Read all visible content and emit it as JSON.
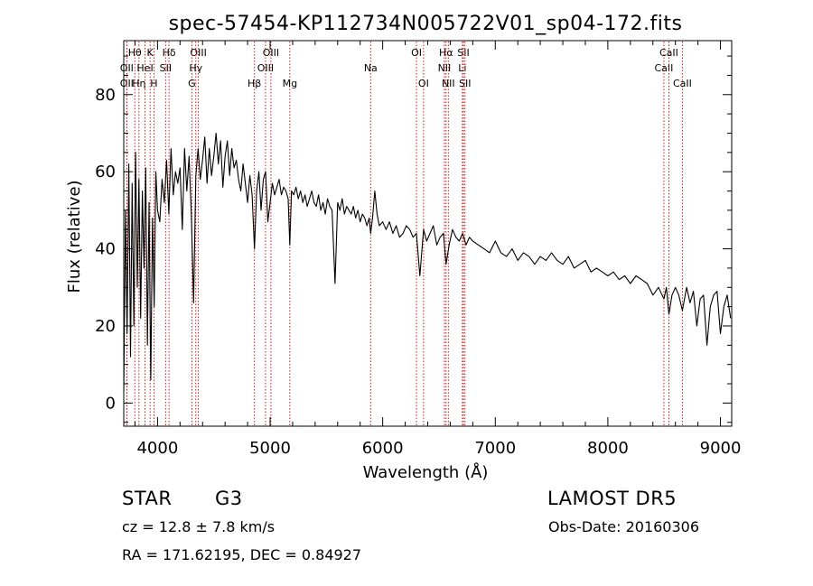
{
  "chart_data": {
    "type": "line",
    "title": "spec-57454-KP112734N005722V01_sp04-172.fits",
    "xlabel": "Wavelength (Å)",
    "ylabel": "Flux (relative)",
    "xlim": [
      3700,
      9100
    ],
    "ylim": [
      -6,
      94
    ],
    "xticks": [
      4000,
      5000,
      6000,
      7000,
      8000,
      9000
    ],
    "yticks": [
      0,
      20,
      40,
      60,
      80
    ],
    "grid": false,
    "line_color": "#000000",
    "marker_color": "#cc0000",
    "series": [
      {
        "x": [
          3700,
          3715,
          3730,
          3745,
          3760,
          3775,
          3790,
          3805,
          3820,
          3835,
          3850,
          3865,
          3880,
          3895,
          3910,
          3925,
          3940,
          3955,
          3970,
          3985,
          4000,
          4020,
          4040,
          4060,
          4080,
          4100,
          4120,
          4140,
          4160,
          4180,
          4200,
          4220,
          4240,
          4260,
          4280,
          4300,
          4320,
          4340,
          4360,
          4380,
          4400,
          4420,
          4440,
          4460,
          4480,
          4500,
          4520,
          4540,
          4560,
          4580,
          4600,
          4620,
          4640,
          4660,
          4680,
          4700,
          4720,
          4740,
          4760,
          4780,
          4800,
          4820,
          4840,
          4861,
          4880,
          4900,
          4920,
          4940,
          4960,
          4980,
          5000,
          5020,
          5040,
          5060,
          5080,
          5100,
          5120,
          5140,
          5160,
          5175,
          5190,
          5210,
          5230,
          5250,
          5270,
          5290,
          5310,
          5330,
          5350,
          5370,
          5390,
          5410,
          5430,
          5450,
          5470,
          5490,
          5510,
          5530,
          5550,
          5577,
          5600,
          5620,
          5640,
          5660,
          5680,
          5700,
          5720,
          5740,
          5760,
          5780,
          5800,
          5820,
          5840,
          5860,
          5880,
          5893,
          5910,
          5930,
          5950,
          5970,
          6000,
          6030,
          6060,
          6090,
          6120,
          6150,
          6180,
          6210,
          6240,
          6270,
          6300,
          6330,
          6363,
          6390,
          6420,
          6450,
          6480,
          6510,
          6540,
          6563,
          6590,
          6620,
          6650,
          6680,
          6710,
          6740,
          6770,
          6800,
          6850,
          6900,
          6950,
          7000,
          7050,
          7100,
          7150,
          7200,
          7250,
          7300,
          7350,
          7400,
          7450,
          7500,
          7550,
          7600,
          7650,
          7700,
          7750,
          7800,
          7850,
          7900,
          7950,
          8000,
          8050,
          8100,
          8150,
          8200,
          8250,
          8300,
          8350,
          8400,
          8450,
          8498,
          8520,
          8542,
          8570,
          8600,
          8630,
          8662,
          8700,
          8730,
          8760,
          8790,
          8820,
          8850,
          8880,
          8910,
          8940,
          8970,
          9000,
          9030,
          9060,
          9090
        ],
        "y": [
          3,
          50,
          18,
          62,
          12,
          57,
          20,
          65,
          30,
          58,
          22,
          55,
          35,
          61,
          15,
          52,
          6,
          48,
          25,
          60,
          50,
          47,
          58,
          52,
          63,
          49,
          66,
          54,
          60,
          57,
          61,
          45,
          66,
          55,
          64,
          49,
          26,
          59,
          66,
          58,
          63,
          69,
          57,
          66,
          59,
          64,
          70,
          62,
          68,
          56,
          64,
          68,
          59,
          66,
          61,
          63,
          58,
          55,
          62,
          57,
          52,
          59,
          54,
          40,
          55,
          60,
          50,
          58,
          60,
          47,
          52,
          57,
          54,
          56,
          58,
          54,
          56,
          55,
          53,
          41,
          55,
          54,
          56,
          53,
          55,
          52,
          54,
          51,
          53,
          55,
          52,
          51,
          54,
          50,
          52,
          49,
          53,
          51,
          50,
          31,
          52,
          50,
          53,
          49,
          51,
          50,
          49,
          51,
          48,
          50,
          47,
          49,
          48,
          46,
          48,
          44,
          48,
          55,
          49,
          46,
          47,
          45,
          47,
          44,
          46,
          43,
          44,
          46,
          45,
          43,
          44,
          33,
          45,
          42,
          44,
          46,
          41,
          43,
          44,
          36,
          41,
          45,
          43,
          42,
          44,
          41,
          43,
          42,
          41,
          40,
          39,
          42,
          39,
          38,
          40,
          37,
          39,
          38,
          36,
          38,
          37,
          39,
          37,
          36,
          38,
          35,
          36,
          37,
          34,
          35,
          34,
          33,
          34,
          32,
          33,
          31,
          33,
          32,
          31,
          28,
          30,
          27,
          30,
          23,
          28,
          30,
          28,
          24,
          30,
          26,
          29,
          20,
          27,
          28,
          15,
          25,
          28,
          29,
          18,
          25,
          28,
          22
        ]
      }
    ],
    "line_markers": [
      {
        "label": "OII",
        "wl": 3727,
        "row": 3
      },
      {
        "label": "Hθ",
        "wl": 3798,
        "row": 1
      },
      {
        "label": "OII",
        "wl": 3727,
        "row": 2
      },
      {
        "label": "Hη",
        "wl": 3835,
        "row": 3
      },
      {
        "label": "HeI",
        "wl": 3889,
        "row": 2
      },
      {
        "label": "K",
        "wl": 3934,
        "row": 1
      },
      {
        "label": "H",
        "wl": 3968,
        "row": 3
      },
      {
        "label": "Hδ",
        "wl": 4102,
        "row": 1
      },
      {
        "label": "SII",
        "wl": 4072,
        "row": 2
      },
      {
        "label": "OIII",
        "wl": 4363,
        "row": 1
      },
      {
        "label": "Hγ",
        "wl": 4340,
        "row": 2
      },
      {
        "label": "G",
        "wl": 4305,
        "row": 3
      },
      {
        "label": "Hβ",
        "wl": 4861,
        "row": 3
      },
      {
        "label": "OIII",
        "wl": 5007,
        "row": 1
      },
      {
        "label": "OIII",
        "wl": 4959,
        "row": 2
      },
      {
        "label": "Mg",
        "wl": 5175,
        "row": 3
      },
      {
        "label": "Na",
        "wl": 5893,
        "row": 2
      },
      {
        "label": "OI",
        "wl": 6300,
        "row": 1
      },
      {
        "label": "OI",
        "wl": 6363,
        "row": 3
      },
      {
        "label": "Hα",
        "wl": 6563,
        "row": 1
      },
      {
        "label": "NII",
        "wl": 6548,
        "row": 2
      },
      {
        "label": "NII",
        "wl": 6583,
        "row": 3
      },
      {
        "label": "SII",
        "wl": 6717,
        "row": 1
      },
      {
        "label": "Li",
        "wl": 6708,
        "row": 2
      },
      {
        "label": "SII",
        "wl": 6731,
        "row": 3
      },
      {
        "label": "CaII",
        "wl": 8498,
        "row": 2
      },
      {
        "label": "CaII",
        "wl": 8542,
        "row": 1
      },
      {
        "label": "CaII",
        "wl": 8662,
        "row": 3
      }
    ]
  },
  "info": {
    "object_class": "STAR",
    "subclass": "G3",
    "survey": "LAMOST  DR5",
    "redshift": "cz = 12.8 ± 7.8 km/s",
    "obs_date": "Obs-Date: 20160306",
    "coords": "RA = 171.62195, DEC =   0.84927"
  }
}
